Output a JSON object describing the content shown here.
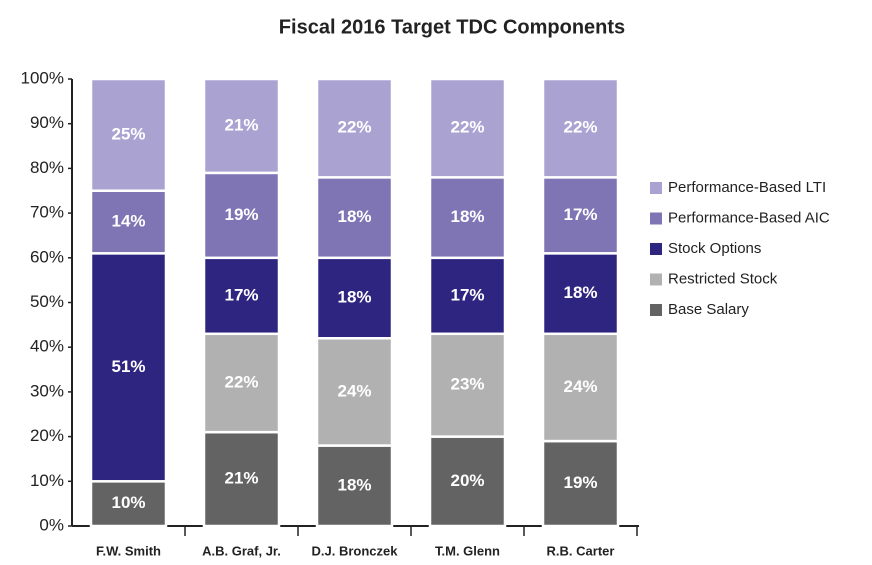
{
  "chart_data": {
    "type": "stacked_bar",
    "title": "Fiscal 2016 Target TDC Components",
    "categories": [
      "F.W. Smith",
      "A.B. Graf, Jr.",
      "D.J. Bronczek",
      "T.M. Glenn",
      "R.B. Carter"
    ],
    "series": [
      {
        "name": "Base Salary",
        "color": "#636363",
        "values": [
          10,
          21,
          18,
          20,
          19
        ],
        "value_labels": [
          "10%",
          "21%",
          "18%",
          "20%",
          "19%"
        ]
      },
      {
        "name": "Restricted Stock",
        "color": "#b1b1b1",
        "values": [
          null,
          22,
          24,
          23,
          24
        ],
        "value_labels": [
          null,
          "22%",
          "24%",
          "23%",
          "24%"
        ]
      },
      {
        "name": "Stock Options",
        "color": "#2e2580",
        "values": [
          51,
          17,
          18,
          17,
          18
        ],
        "value_labels": [
          "51%",
          "17%",
          "18%",
          "17%",
          "18%"
        ]
      },
      {
        "name": "Performance-Based AIC",
        "color": "#7f74b4",
        "values": [
          14,
          19,
          18,
          18,
          17
        ],
        "value_labels": [
          "14%",
          "19%",
          "18%",
          "18%",
          "17%"
        ]
      },
      {
        "name": "Performance-Based LTI",
        "color": "#aaa3d2",
        "values": [
          25,
          21,
          22,
          22,
          22
        ],
        "value_labels": [
          "25%",
          "21%",
          "22%",
          "22%",
          "22%"
        ]
      }
    ],
    "ylim": [
      0,
      100
    ],
    "yticks": [
      {
        "value": 0,
        "label": "0%"
      },
      {
        "value": 10,
        "label": "10%"
      },
      {
        "value": 20,
        "label": "20%"
      },
      {
        "value": 30,
        "label": "30%"
      },
      {
        "value": 40,
        "label": "40%"
      },
      {
        "value": 50,
        "label": "50%"
      },
      {
        "value": 60,
        "label": "60%"
      },
      {
        "value": 70,
        "label": "70%"
      },
      {
        "value": 80,
        "label": "80%"
      },
      {
        "value": 90,
        "label": "90%"
      },
      {
        "value": 100,
        "label": "100%"
      }
    ],
    "legend": "right"
  }
}
